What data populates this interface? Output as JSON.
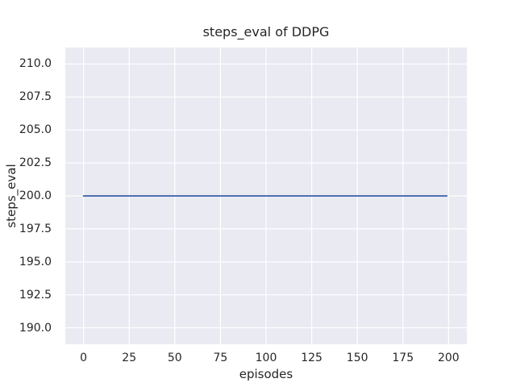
{
  "chart_data": {
    "type": "line",
    "title": "steps_eval of DDPG",
    "xlabel": "episodes",
    "ylabel": "steps_eval",
    "xlim": [
      -10,
      210
    ],
    "ylim": [
      188.75,
      211.25
    ],
    "grid": true,
    "legend_position": "none",
    "xticks": [
      0,
      25,
      50,
      75,
      100,
      125,
      150,
      175,
      200
    ],
    "xtick_labels": [
      "0",
      "25",
      "50",
      "75",
      "100",
      "125",
      "150",
      "175",
      "200"
    ],
    "yticks": [
      190.0,
      192.5,
      195.0,
      197.5,
      200.0,
      202.5,
      205.0,
      207.5,
      210.0
    ],
    "ytick_labels": [
      "190.0",
      "192.5",
      "195.0",
      "197.5",
      "200.0",
      "202.5",
      "205.0",
      "207.5",
      "210.0"
    ],
    "series": [
      {
        "name": "steps_eval of DDPG",
        "color": "#4c72b0",
        "points": [
          [
            0,
            200
          ],
          [
            199,
            200
          ]
        ]
      }
    ],
    "colors": {
      "plot_background": "#eaeaf2",
      "gridline": "#ffffff",
      "line": "#4c72b0",
      "text": "#262626",
      "figure_background": "#ffffff"
    }
  }
}
